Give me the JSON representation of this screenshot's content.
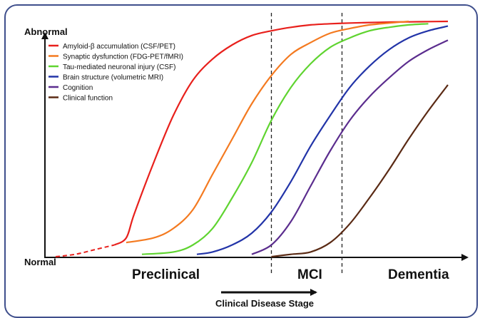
{
  "chart_data": {
    "type": "line",
    "title": "",
    "xlabel": "Clinical Disease Stage",
    "ylabel": "",
    "y_axis_labels": {
      "top": "Abnormal",
      "bottom": "Normal"
    },
    "xlim": [
      0,
      1
    ],
    "ylim": [
      0,
      1
    ],
    "stages": [
      "Preclinical",
      "MCI",
      "Dementia"
    ],
    "stage_boundaries": [
      0.55,
      0.73
    ],
    "grid": false,
    "legend_position": "top-left",
    "series": [
      {
        "name": "Amyloid-β accumulation (CSF/PET)",
        "color": "#e8201c",
        "x": [
          0.0,
          0.05,
          0.1,
          0.15,
          0.18,
          0.2,
          0.25,
          0.3,
          0.35,
          0.4,
          0.45,
          0.5,
          0.55,
          0.6,
          0.65,
          0.7,
          0.75,
          0.8,
          0.85,
          0.9,
          0.95,
          1.0
        ],
        "y": [
          0.0,
          0.01,
          0.03,
          0.05,
          0.08,
          0.18,
          0.4,
          0.6,
          0.75,
          0.84,
          0.9,
          0.94,
          0.96,
          0.975,
          0.985,
          0.99,
          0.993,
          0.995,
          0.997,
          0.998,
          0.999,
          1.0
        ],
        "dashed_until_x": 0.17
      },
      {
        "name": "Synaptic dysfunction (FDG-PET/fMRI)",
        "color": "#f47a20",
        "x": [
          0.18,
          0.25,
          0.3,
          0.35,
          0.4,
          0.45,
          0.5,
          0.55,
          0.6,
          0.65,
          0.7,
          0.75,
          0.8,
          0.85,
          0.9
        ],
        "y": [
          0.06,
          0.08,
          0.12,
          0.2,
          0.35,
          0.5,
          0.65,
          0.77,
          0.86,
          0.91,
          0.95,
          0.97,
          0.985,
          0.993,
          1.0
        ]
      },
      {
        "name": "Tau-mediated neuronal injury (CSF)",
        "color": "#5fd430",
        "x": [
          0.22,
          0.3,
          0.35,
          0.4,
          0.45,
          0.5,
          0.55,
          0.6,
          0.65,
          0.7,
          0.75,
          0.8,
          0.85,
          0.9,
          0.95
        ],
        "y": [
          0.01,
          0.02,
          0.05,
          0.12,
          0.25,
          0.4,
          0.58,
          0.72,
          0.82,
          0.89,
          0.93,
          0.96,
          0.975,
          0.985,
          0.99
        ]
      },
      {
        "name": "Brain structure (volumetric MRI)",
        "color": "#2234a8",
        "x": [
          0.36,
          0.4,
          0.45,
          0.5,
          0.55,
          0.6,
          0.65,
          0.7,
          0.75,
          0.8,
          0.85,
          0.9,
          0.95,
          1.0
        ],
        "y": [
          0.01,
          0.02,
          0.05,
          0.1,
          0.19,
          0.32,
          0.47,
          0.6,
          0.72,
          0.81,
          0.88,
          0.93,
          0.96,
          0.98
        ]
      },
      {
        "name": "Cognition",
        "color": "#5b2d8e",
        "x": [
          0.5,
          0.55,
          0.6,
          0.65,
          0.7,
          0.75,
          0.8,
          0.85,
          0.9,
          0.95,
          1.0
        ],
        "y": [
          0.01,
          0.05,
          0.15,
          0.3,
          0.45,
          0.58,
          0.68,
          0.76,
          0.83,
          0.88,
          0.92
        ]
      },
      {
        "name": "Clinical function",
        "color": "#5a2a14",
        "x": [
          0.55,
          0.6,
          0.65,
          0.7,
          0.75,
          0.8,
          0.85,
          0.9,
          0.95,
          1.0
        ],
        "y": [
          0.0,
          0.01,
          0.02,
          0.06,
          0.14,
          0.25,
          0.37,
          0.5,
          0.62,
          0.73
        ]
      }
    ]
  }
}
